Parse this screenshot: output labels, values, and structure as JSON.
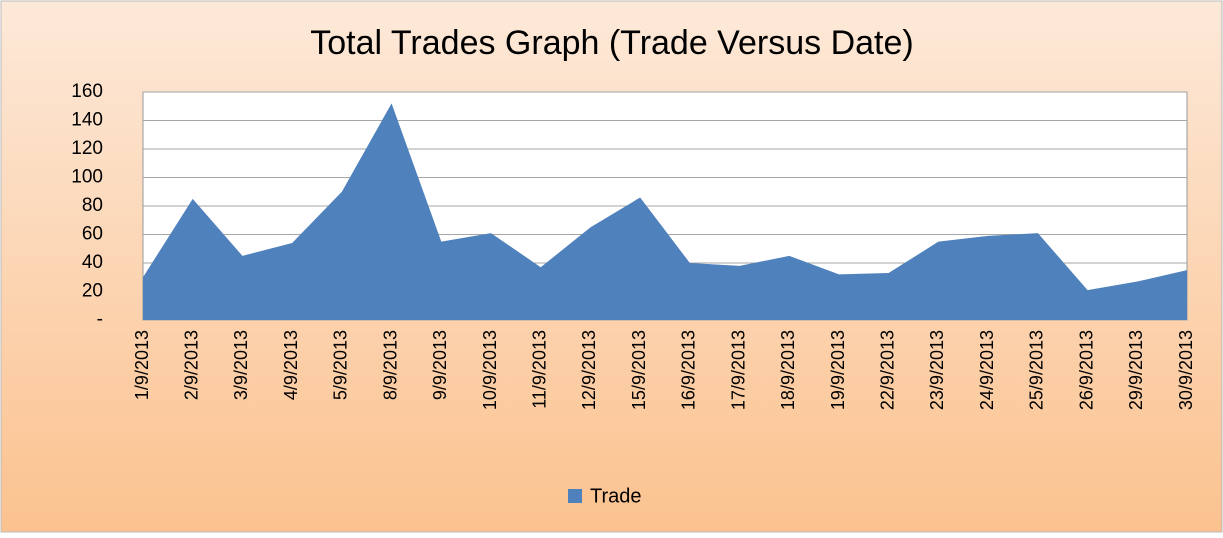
{
  "chart_data": {
    "type": "area",
    "title": "Total Trades Graph (Trade Versus Date)",
    "categories": [
      "1/9/2013",
      "2/9/2013",
      "3/9/2013",
      "4/9/2013",
      "5/9/2013",
      "8/9/2013",
      "9/9/2013",
      "10/9/2013",
      "11/9/2013",
      "12/9/2013",
      "15/9/2013",
      "16/9/2013",
      "17/9/2013",
      "18/9/2013",
      "19/9/2013",
      "22/9/2013",
      "23/9/2013",
      "24/9/2013",
      "25/9/2013",
      "26/9/2013",
      "29/9/2013",
      "30/9/2013"
    ],
    "series": [
      {
        "name": "Trade",
        "color": "#4f81bd",
        "values": [
          30,
          85,
          45,
          54,
          90,
          152,
          55,
          61,
          37,
          65,
          86,
          40,
          38,
          45,
          32,
          33,
          55,
          59,
          61,
          21,
          27,
          35
        ]
      }
    ],
    "ylim": [
      0,
      160
    ],
    "yticks": [
      {
        "value": 0,
        "label": "-"
      },
      20,
      40,
      60,
      80,
      100,
      120,
      140,
      160
    ],
    "grid": true,
    "legend": "bottom"
  }
}
